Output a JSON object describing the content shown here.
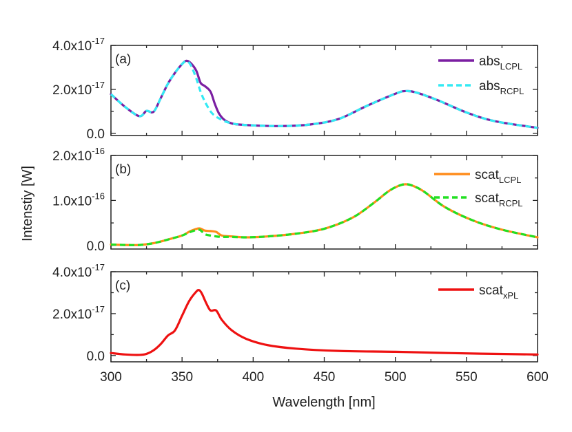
{
  "chart_data": {
    "type": "line",
    "xlabel": "Wavelength [nm]",
    "ylabel": "Intenstiy [W]",
    "xlim": [
      300,
      600
    ],
    "xticks": [
      300,
      350,
      400,
      450,
      500,
      550,
      600
    ],
    "xtick_labels": [
      "300",
      "350",
      "400",
      "450",
      "500",
      "550",
      "600"
    ],
    "panels": [
      {
        "label": "(a)",
        "ylim": [
          -1e-18,
          4e-17
        ],
        "yticks": [
          0,
          2e-17,
          4e-17
        ],
        "ytick_labels": [
          {
            "mant": "0.0",
            "exp": ""
          },
          {
            "mant": "2.0x10",
            "exp": "-17"
          },
          {
            "mant": "4.0x10",
            "exp": "-17"
          }
        ],
        "series": [
          {
            "name": "abs_LCPL",
            "base": "abs",
            "sub": "LCPL",
            "color": "#7b1fa2",
            "dash": "solid",
            "x": [
              300,
              310,
              320,
              325,
              330,
              335,
              340,
              345,
              350,
              353,
              356,
              360,
              363,
              366,
              370,
              373,
              376,
              380,
              385,
              390,
              400,
              420,
              440,
              460,
              480,
              500,
              507,
              515,
              530,
              550,
              570,
              600
            ],
            "y": [
              1.78e-17,
              1.2e-17,
              7.8e-18,
              1.02e-17,
              9.8e-18,
              1.6e-17,
              2.25e-17,
              2.75e-17,
              3.15e-17,
              3.3e-17,
              3.2e-17,
              2.85e-17,
              2.3e-17,
              2.15e-17,
              1.9e-17,
              1.35e-17,
              9e-18,
              6e-18,
              4.5e-18,
              4e-18,
              3.6e-18,
              3.3e-18,
              4e-18,
              6.5e-18,
              1.25e-17,
              1.8e-17,
              1.92e-17,
              1.85e-17,
              1.5e-17,
              9.5e-18,
              5.5e-18,
              2.5e-18
            ]
          },
          {
            "name": "abs_RCPL",
            "base": "abs",
            "sub": "RCPL",
            "color": "#33eaf4",
            "dash": "dashed",
            "x": [
              300,
              310,
              320,
              325,
              330,
              335,
              340,
              345,
              350,
              353,
              356,
              360,
              363,
              366,
              370,
              373,
              376,
              380,
              385,
              390,
              400,
              420,
              440,
              460,
              480,
              500,
              507,
              515,
              530,
              550,
              570,
              600
            ],
            "y": [
              1.78e-17,
              1.2e-17,
              7.8e-18,
              1.02e-17,
              9.8e-18,
              1.6e-17,
              2.25e-17,
              2.75e-17,
              3.15e-17,
              3.28e-17,
              3.12e-17,
              2.5e-17,
              1.9e-17,
              1.45e-17,
              1e-17,
              8e-18,
              6.8e-18,
              5.5e-18,
              4.5e-18,
              4e-18,
              3.6e-18,
              3.3e-18,
              4e-18,
              6.5e-18,
              1.25e-17,
              1.8e-17,
              1.92e-17,
              1.85e-17,
              1.5e-17,
              9.5e-18,
              5.5e-18,
              2.5e-18
            ]
          }
        ]
      },
      {
        "label": "(b)",
        "ylim": [
          -8e-18,
          2e-16
        ],
        "yticks": [
          0,
          1e-16,
          2e-16
        ],
        "ytick_labels": [
          {
            "mant": "0.0",
            "exp": ""
          },
          {
            "mant": "1.0x10",
            "exp": "-16"
          },
          {
            "mant": "2.0x10",
            "exp": "-16"
          }
        ],
        "series": [
          {
            "name": "scat_LCPL",
            "base": "scat",
            "sub": "LCPL",
            "color": "#ff8c1a",
            "dash": "solid",
            "x": [
              300,
              310,
              320,
              330,
              340,
              350,
              356,
              362,
              366,
              370,
              374,
              378,
              385,
              395,
              410,
              430,
              450,
              470,
              485,
              495,
              502,
              507,
              512,
              520,
              535,
              555,
              575,
              600
            ],
            "y": [
              2e-18,
              1e-18,
              1e-18,
              5e-18,
              1.3e-17,
              2.2e-17,
              3.2e-17,
              3.8e-17,
              3.3e-17,
              3.2e-17,
              3e-17,
              2.2e-17,
              2e-17,
              1.8e-17,
              2e-17,
              2.6e-17,
              3.7e-17,
              6.2e-17,
              9.5e-17,
              1.2e-16,
              1.32e-16,
              1.36e-16,
              1.33e-16,
              1.2e-16,
              8.5e-17,
              5.5e-17,
              3.5e-17,
              1.8e-17
            ]
          },
          {
            "name": "scat_RCPL",
            "base": "scat",
            "sub": "RCPL",
            "color": "#22e022",
            "dash": "dashed",
            "x": [
              300,
              310,
              320,
              330,
              340,
              350,
              356,
              362,
              366,
              370,
              374,
              378,
              385,
              395,
              410,
              430,
              450,
              470,
              485,
              495,
              502,
              507,
              512,
              520,
              535,
              555,
              575,
              600
            ],
            "y": [
              2e-18,
              1e-18,
              1e-18,
              5e-18,
              1.3e-17,
              2.2e-17,
              3e-17,
              3.5e-17,
              2.5e-17,
              2.2e-17,
              2e-17,
              1.9e-17,
              1.9e-17,
              1.8e-17,
              2e-17,
              2.6e-17,
              3.7e-17,
              6.2e-17,
              9.5e-17,
              1.2e-16,
              1.32e-16,
              1.36e-16,
              1.33e-16,
              1.2e-16,
              8.5e-17,
              5.5e-17,
              3.5e-17,
              1.8e-17
            ]
          }
        ]
      },
      {
        "label": "(c)",
        "ylim": [
          -3e-18,
          4e-17
        ],
        "yticks": [
          0,
          2e-17,
          4e-17
        ],
        "ytick_labels": [
          {
            "mant": "0.0",
            "exp": ""
          },
          {
            "mant": "2.0x10",
            "exp": "-17"
          },
          {
            "mant": "4.0x10",
            "exp": "-17"
          }
        ],
        "series": [
          {
            "name": "scat_xPL",
            "base": "scat",
            "sub": "xPL",
            "color": "#ee1111",
            "dash": "solid",
            "x": [
              300,
              310,
              320,
              325,
              330,
              335,
              340,
              345,
              350,
              355,
              360,
              362,
              364,
              367,
              370,
              374,
              378,
              385,
              395,
              410,
              430,
              460,
              500,
              530,
              560,
              600
            ],
            "y": [
              1.2e-18,
              5e-19,
              3e-19,
              8e-19,
              2.5e-18,
              5.5e-18,
              9.5e-18,
              1.2e-17,
              1.9e-17,
              2.6e-17,
              3.05e-17,
              3.12e-17,
              2.95e-17,
              2.5e-17,
              2.15e-17,
              2.15e-17,
              1.7e-17,
              1.2e-17,
              8e-18,
              5e-18,
              3.3e-18,
              2.2e-18,
              1.8e-18,
              1.3e-18,
              9e-19,
              5e-19
            ]
          }
        ]
      }
    ]
  }
}
